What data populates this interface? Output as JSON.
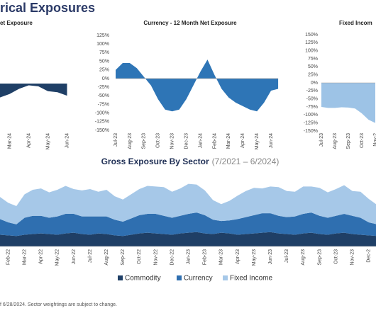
{
  "title": "rical Exposures",
  "footnote": "f 6/28/2024. Sector weightings are subject to change.",
  "chart_data": [
    {
      "type": "area",
      "title": "et Exposure",
      "categories": [
        null,
        "Mar-24",
        null,
        "Apr-24",
        null,
        "May-24",
        null,
        "Jun-24"
      ],
      "values": [
        -40,
        -30,
        -15,
        -5,
        -8,
        -22,
        -25,
        -35
      ],
      "color": "#1f3f66",
      "ylim": [
        -150,
        125
      ]
    },
    {
      "type": "area",
      "title": "Currency - 12 Month Net Exposure",
      "categories": [
        "Jul-23",
        null,
        "Aug-23",
        null,
        "Sep-23",
        null,
        "Oct-23",
        null,
        "Nov-23",
        null,
        "Dec-23",
        null,
        "Jan-24",
        null,
        "Feb-24",
        null,
        "Mar-24",
        null,
        "Apr-24",
        null,
        "May-24",
        null,
        "Jun-24",
        null
      ],
      "values": [
        25,
        45,
        45,
        30,
        5,
        -20,
        -60,
        -90,
        -95,
        -90,
        -60,
        -20,
        20,
        55,
        10,
        -30,
        -55,
        -70,
        -80,
        -90,
        -95,
        -70,
        -35,
        -30
      ],
      "color": "#2e75b6",
      "ylim": [
        -150,
        125
      ],
      "yticks": [
        {
          "value": 125,
          "label": "125%"
        },
        {
          "value": 100,
          "label": "100%"
        },
        {
          "value": 75,
          "label": "75%"
        },
        {
          "value": 50,
          "label": "50%"
        },
        {
          "value": 25,
          "label": "25%"
        },
        {
          "value": 0,
          "label": "0%"
        },
        {
          "value": -25,
          "label": "-25%"
        },
        {
          "value": -50,
          "label": "-50%"
        },
        {
          "value": -75,
          "label": "-75%"
        },
        {
          "value": -100,
          "label": "-100%"
        },
        {
          "value": -125,
          "label": "-125%"
        },
        {
          "value": -150,
          "label": "-150%"
        }
      ]
    },
    {
      "type": "area",
      "title": "Fixed Incom",
      "categories": [
        "Jul-23",
        null,
        "Aug-23",
        null,
        "Sep-23",
        null,
        "Oct-23",
        null,
        "Nov-2"
      ],
      "values": [
        -75,
        -78,
        -78,
        -76,
        -77,
        -80,
        -95,
        -115,
        -125
      ],
      "color": "#9dc3e6",
      "ylim": [
        -150,
        150
      ],
      "yticks": [
        {
          "value": 150,
          "label": "150%"
        },
        {
          "value": 125,
          "label": "125%"
        },
        {
          "value": 100,
          "label": "100%"
        },
        {
          "value": 75,
          "label": "75%"
        },
        {
          "value": 50,
          "label": "50%"
        },
        {
          "value": 25,
          "label": "25%"
        },
        {
          "value": 0,
          "label": "0%"
        },
        {
          "value": -25,
          "label": "-25%"
        },
        {
          "value": -50,
          "label": "-50%"
        },
        {
          "value": -75,
          "label": "-75%"
        },
        {
          "value": -100,
          "label": "-100%"
        },
        {
          "value": -125,
          "label": "-125%"
        },
        {
          "value": -150,
          "label": "-150%"
        }
      ]
    },
    {
      "type": "stacked_area",
      "title": "Gross Exposure By Sector",
      "subtitle": "(7/2021 – 6/2024)",
      "categories": [
        null,
        "Feb-22",
        null,
        "Mar-22",
        null,
        "Apr-22",
        null,
        "May-22",
        null,
        "Jun-22",
        null,
        "Jul-22",
        null,
        "Aug-22",
        null,
        "Sep-22",
        null,
        "Oct-22",
        null,
        "Nov-22",
        null,
        "Dec-22",
        null,
        "Jan-23",
        null,
        "Feb-23",
        null,
        "Mar-23",
        null,
        "Apr-23",
        null,
        "May-23",
        null,
        "Jun-23",
        null,
        "Jul-23",
        null,
        "Aug-23",
        null,
        "Sep-23",
        null,
        "Oct-23",
        null,
        "Nov-23",
        null,
        "Dec-2",
        null
      ],
      "ylim": [
        0,
        100
      ],
      "series": [
        {
          "name": "Commodity",
          "color": "#1f3f66",
          "values": [
            18,
            17,
            16,
            18,
            19,
            20,
            19,
            18,
            20,
            21,
            19,
            18,
            20,
            19,
            17,
            16,
            18,
            20,
            21,
            20,
            19,
            18,
            20,
            21,
            22,
            20,
            19,
            21,
            20,
            18,
            19,
            20,
            21,
            22,
            20,
            19,
            18,
            20,
            21,
            19,
            18,
            20,
            21,
            19,
            18,
            17,
            16
          ]
        },
        {
          "name": "Currency",
          "color": "#2f6fb0",
          "values": [
            24,
            20,
            18,
            26,
            28,
            27,
            25,
            28,
            30,
            29,
            27,
            28,
            26,
            27,
            24,
            22,
            25,
            28,
            29,
            30,
            28,
            26,
            27,
            29,
            30,
            28,
            22,
            18,
            20,
            24,
            26,
            28,
            30,
            29,
            27,
            26,
            28,
            30,
            31,
            28,
            26,
            27,
            29,
            28,
            26,
            20,
            18
          ]
        },
        {
          "name": "Fixed Income",
          "color": "#a6c8e8",
          "values": [
            34,
            30,
            28,
            36,
            40,
            42,
            39,
            41,
            43,
            38,
            40,
            42,
            38,
            41,
            36,
            34,
            37,
            40,
            43,
            42,
            44,
            40,
            42,
            46,
            43,
            38,
            30,
            26,
            30,
            36,
            40,
            42,
            38,
            41,
            44,
            40,
            38,
            42,
            40,
            43,
            39,
            41,
            44,
            38,
            40,
            36,
            30
          ]
        }
      ]
    }
  ]
}
